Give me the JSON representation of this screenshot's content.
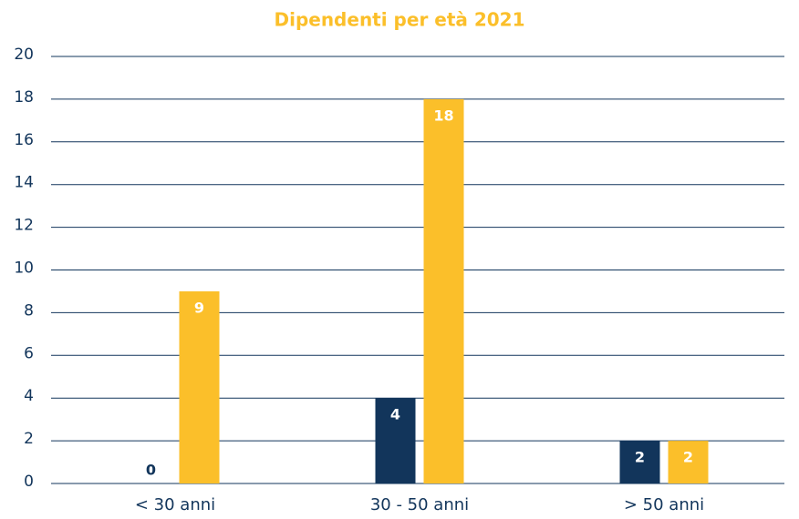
{
  "chart_data": {
    "type": "bar",
    "title": "Dipendenti per età 2021",
    "categories": [
      "< 30 anni",
      "30 - 50 anni",
      "> 50 anni"
    ],
    "series": [
      {
        "color": "#12355b",
        "values": [
          0,
          4,
          2
        ]
      },
      {
        "color": "#fbbf2a",
        "values": [
          9,
          18,
          2
        ]
      }
    ],
    "ylim": [
      0,
      20
    ],
    "yticks": [
      0,
      2,
      4,
      6,
      8,
      10,
      12,
      14,
      16,
      18,
      20
    ],
    "grid": true,
    "data_labels": true
  }
}
